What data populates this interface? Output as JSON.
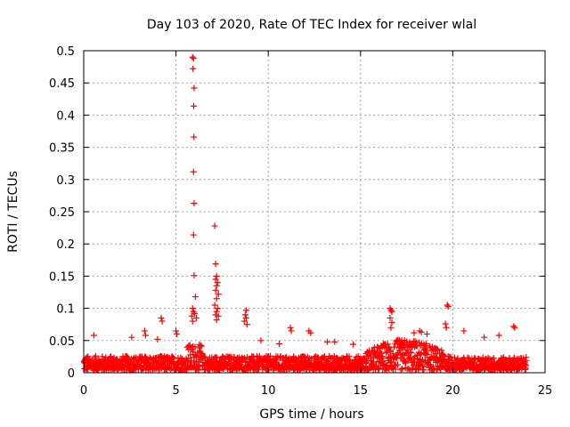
{
  "chart_data": {
    "type": "scatter",
    "title": "Day 103 of 2020, Rate Of TEC Index for receiver wlal",
    "xlabel": "GPS time / hours",
    "ylabel": "ROTI / TECUs",
    "xlim": [
      0,
      25
    ],
    "ylim": [
      0,
      0.5
    ],
    "xticks": [
      0,
      5,
      10,
      15,
      20,
      25
    ],
    "yticks": [
      0,
      0.05,
      0.1,
      0.15,
      0.2,
      0.25,
      0.3,
      0.35,
      0.4,
      0.45,
      0.5
    ],
    "xtick_labels": [
      "0",
      "5",
      "10",
      "15",
      "20",
      "25"
    ],
    "ytick_labels": [
      "0",
      "0.05",
      "0.1",
      "0.15",
      "0.2",
      "0.25",
      "0.3",
      "0.35",
      "0.4",
      "0.45",
      "0.5"
    ],
    "grid": true,
    "marker": "+",
    "color": "#ff0000",
    "series": [
      {
        "name": "ROTI",
        "points": [
          [
            5.9,
            0.49
          ],
          [
            5.95,
            0.488
          ],
          [
            5.92,
            0.472
          ],
          [
            5.98,
            0.442
          ],
          [
            5.96,
            0.414
          ],
          [
            5.97,
            0.366
          ],
          [
            5.95,
            0.312
          ],
          [
            5.98,
            0.263
          ],
          [
            5.95,
            0.214
          ],
          [
            5.98,
            0.151
          ],
          [
            6.05,
            0.118
          ],
          [
            5.9,
            0.1
          ],
          [
            5.95,
            0.095
          ],
          [
            6.0,
            0.092
          ],
          [
            5.85,
            0.088
          ],
          [
            6.1,
            0.085
          ],
          [
            5.9,
            0.08
          ],
          [
            7.1,
            0.228
          ],
          [
            7.15,
            0.169
          ],
          [
            7.2,
            0.15
          ],
          [
            7.15,
            0.145
          ],
          [
            7.25,
            0.14
          ],
          [
            7.2,
            0.135
          ],
          [
            7.15,
            0.128
          ],
          [
            7.3,
            0.122
          ],
          [
            7.2,
            0.115
          ],
          [
            7.1,
            0.105
          ],
          [
            7.25,
            0.1
          ],
          [
            7.2,
            0.095
          ],
          [
            7.15,
            0.09
          ],
          [
            7.3,
            0.088
          ],
          [
            7.2,
            0.082
          ],
          [
            8.8,
            0.097
          ],
          [
            8.75,
            0.09
          ],
          [
            8.8,
            0.085
          ],
          [
            8.7,
            0.08
          ],
          [
            8.85,
            0.075
          ],
          [
            4.2,
            0.085
          ],
          [
            4.25,
            0.08
          ],
          [
            5.0,
            0.065
          ],
          [
            5.05,
            0.06
          ],
          [
            3.3,
            0.065
          ],
          [
            3.35,
            0.058
          ],
          [
            11.2,
            0.07
          ],
          [
            11.25,
            0.065
          ],
          [
            12.2,
            0.065
          ],
          [
            12.3,
            0.062
          ],
          [
            13.2,
            0.048
          ],
          [
            16.6,
            0.1
          ],
          [
            16.65,
            0.097
          ],
          [
            16.7,
            0.095
          ],
          [
            16.6,
            0.085
          ],
          [
            16.7,
            0.078
          ],
          [
            16.65,
            0.07
          ],
          [
            19.7,
            0.105
          ],
          [
            19.75,
            0.103
          ],
          [
            19.6,
            0.076
          ],
          [
            19.65,
            0.07
          ],
          [
            20.6,
            0.065
          ],
          [
            23.3,
            0.072
          ],
          [
            23.35,
            0.07
          ],
          [
            22.5,
            0.058
          ],
          [
            21.7,
            0.055
          ],
          [
            18.2,
            0.065
          ],
          [
            18.3,
            0.063
          ],
          [
            17.9,
            0.062
          ],
          [
            18.6,
            0.06
          ],
          [
            0.55,
            0.058
          ],
          [
            2.6,
            0.055
          ],
          [
            4.0,
            0.052
          ],
          [
            9.6,
            0.05
          ],
          [
            10.6,
            0.045
          ],
          [
            13.6,
            0.048
          ],
          [
            14.6,
            0.044
          ]
        ]
      }
    ]
  }
}
